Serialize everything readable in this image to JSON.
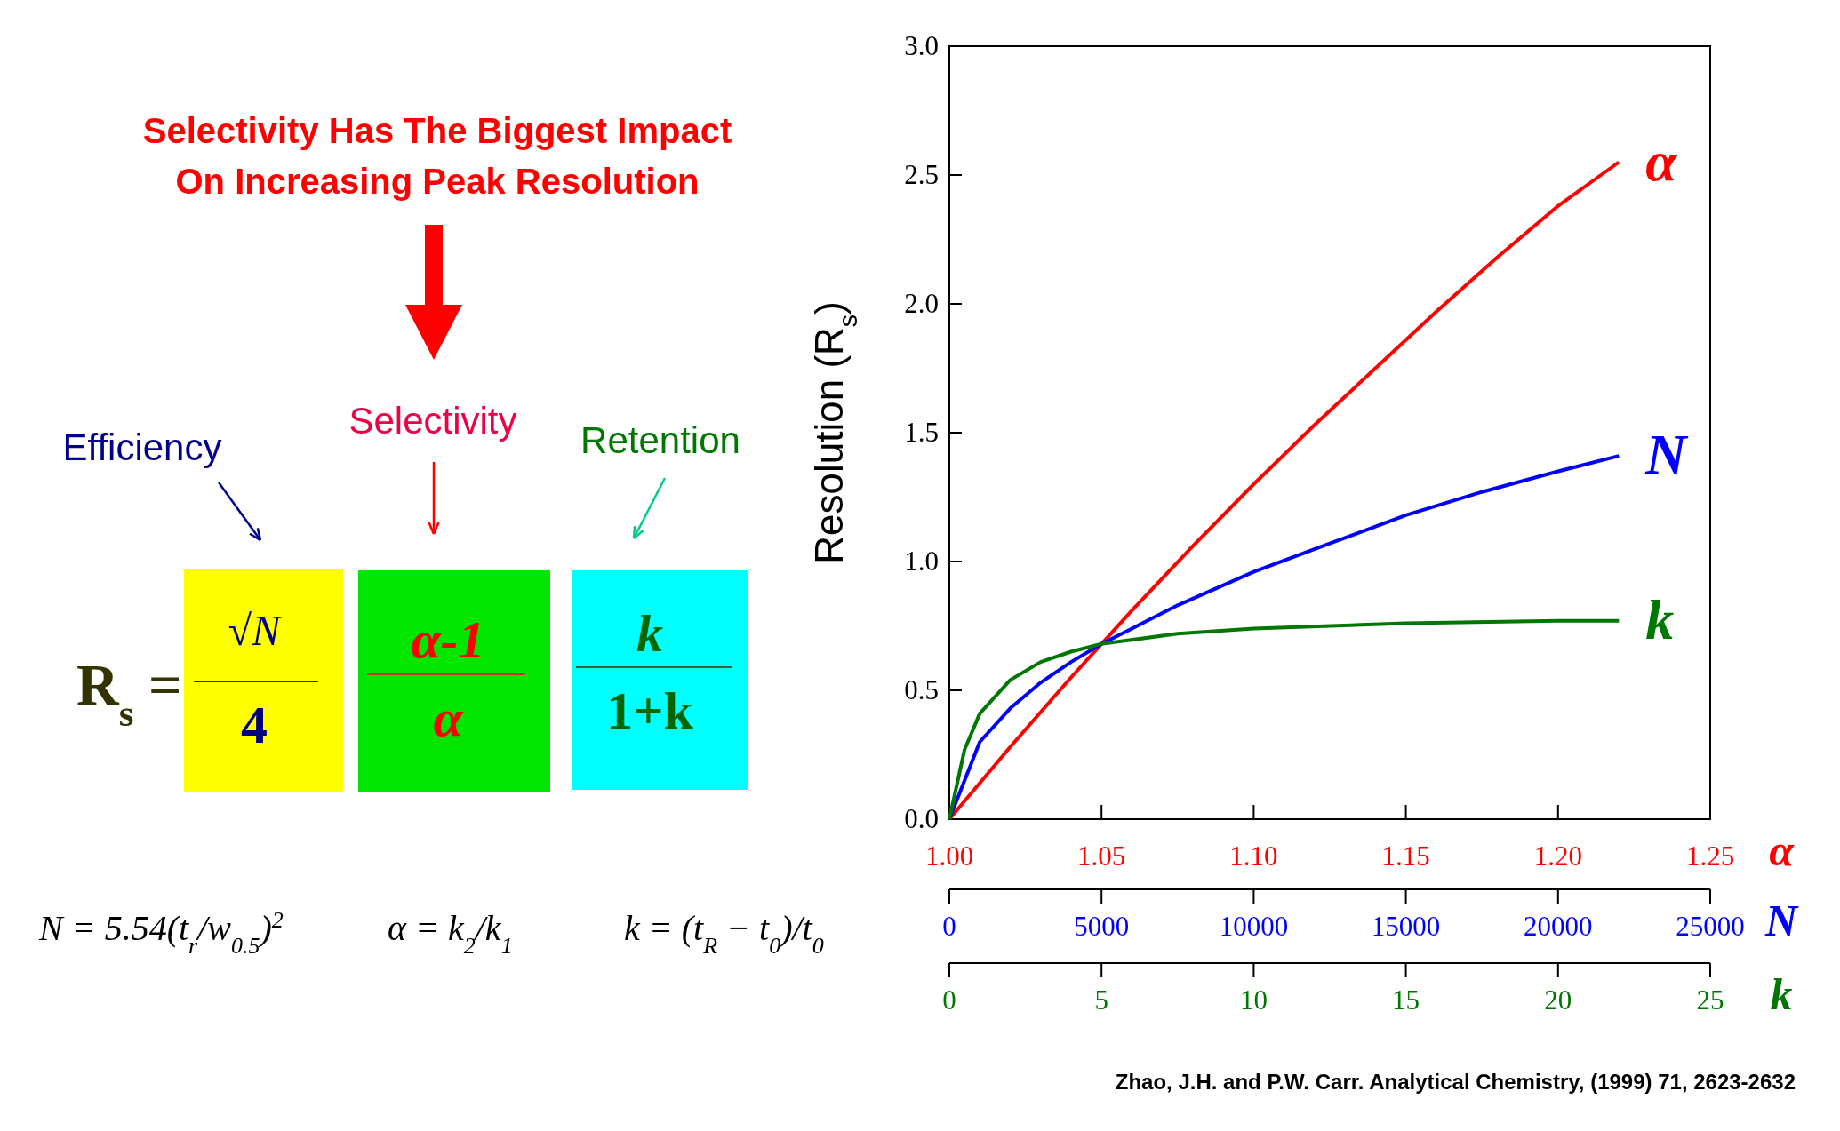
{
  "chart_data": [
    {
      "type": "line",
      "title": "Selectivity Has The Biggest Impact\nOn Increasing Peak Resolution",
      "ylabel": "Resolution (R$_{s}$)",
      "xlabel": "α",
      "x2label": "N",
      "xlim": [
        1.0,
        1.25
      ],
      "xticks": [
        {
          "value": 1.0,
          "label": "1.00"
        },
        {
          "value": 1.05,
          "label": "1.05"
        },
        {
          "value": 1.1,
          "label": "1.10"
        },
        {
          "value": 1.15,
          "label": "1.15"
        },
        {
          "value": 1.2,
          "label": "1.20"
        },
        {
          "value": 1.25,
          "label": "1.25"
        }
      ],
      "x2lim": [
        0,
        25000
      ],
      "x2ticks": [
        0,
        5000,
        10000,
        15000,
        20000,
        25000
      ],
      "ylim": [
        0,
        3.0
      ],
      "yticks": [
        {
          "value": 0,
          "label": "0.0"
        },
        {
          "value": 0.5,
          "label": "0.5"
        },
        {
          "value": 1.0,
          "label": "1.0"
        },
        {
          "value": 1.5,
          "label": "1.5"
        },
        {
          "value": 2.0,
          "label": "2.0"
        },
        {
          "value": 2.5,
          "label": "2.5"
        },
        {
          "value": 3.0,
          "label": "3.0"
        }
      ],
      "series": [
        {
          "name": "α",
          "color": "#ff0000",
          "x": [
            1.0,
            1.02,
            1.04,
            1.06,
            1.08,
            1.1,
            1.12,
            1.14,
            1.16,
            1.18,
            1.2,
            1.22
          ],
          "values": [
            0,
            0.28,
            0.55,
            0.81,
            1.06,
            1.3,
            1.53,
            1.75,
            1.97,
            2.18,
            2.38,
            2.55
          ]
        },
        {
          "name": "N",
          "color": "#0000ff",
          "axis": "x2",
          "x": [
            0,
            1000,
            2000,
            3000,
            4000,
            5000,
            7500,
            10000,
            12500,
            15000,
            17500,
            20000,
            22000
          ],
          "values": [
            0,
            0.3,
            0.43,
            0.53,
            0.61,
            0.68,
            0.83,
            0.96,
            1.07,
            1.18,
            1.27,
            1.35,
            1.41
          ]
        }
      ],
      "annotations": [
        "Efficiency",
        "Selectivity",
        "Retention",
        "R$_{s}$ =",
        "√N",
        "4",
        "α-1",
        "α",
        "k",
        "1+k",
        "N = 5.54(t$_{r}$/w$_{0.5}$)$^{2}$",
        "α = k$_{2}$/k$_{1}$",
        "k = (t$_{R}$ − t$_{0}$)/t$_{0}$",
        "Zhao, J.H. and P.W. Carr. Analytical Chemistry, (1999) 71, 2623-2632"
      ]
    },
    {
      "type": "line",
      "xlabel": "k",
      "tick_labels": "x",
      "xlim": [
        0,
        25
      ],
      "xticks": [
        0,
        5,
        10,
        15,
        20,
        25
      ],
      "ylim": [
        0,
        3.0
      ],
      "series": [
        {
          "name": "k",
          "color": "#007700",
          "x": [
            0,
            0.5,
            1,
            2,
            3,
            4,
            5,
            7.5,
            10,
            15,
            20,
            22
          ],
          "values": [
            0,
            0.27,
            0.41,
            0.54,
            0.61,
            0.65,
            0.68,
            0.72,
            0.74,
            0.76,
            0.77,
            0.77
          ]
        }
      ]
    }
  ]
}
